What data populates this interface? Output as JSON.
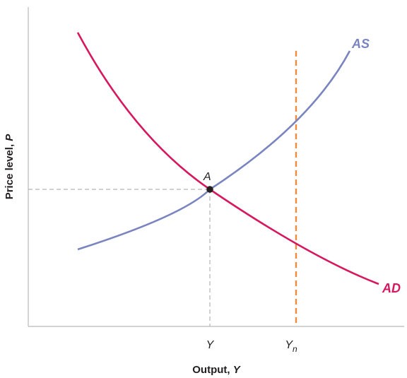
{
  "colors": {
    "as_curve": "#7a84c0",
    "ad_curve": "#d6185f",
    "natural_output_line": "#f08a3c",
    "guide_lines": "#b5b5b5",
    "axes": "#b9b9b9",
    "text": "#231f20"
  },
  "axes": {
    "x_title_prefix": "Output, ",
    "x_title_var": "Y",
    "y_title_prefix": "Price level, ",
    "y_title_var": "P"
  },
  "x_ticks": {
    "equilibrium_output": "Y",
    "natural_output": "Y",
    "natural_output_subscript": "n"
  },
  "curves": {
    "as_label": "AS",
    "ad_label": "AD"
  },
  "points": {
    "equilibrium_label": "A"
  }
}
